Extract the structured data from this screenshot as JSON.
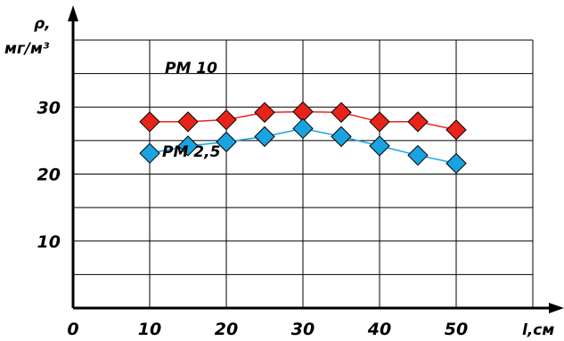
{
  "chart_data": {
    "type": "line",
    "ylabel_line1": "ρ,",
    "ylabel_line2": "мг/м³",
    "xlabel": "l,см",
    "xlim": [
      0,
      60
    ],
    "ylim": [
      0,
      40
    ],
    "grid": true,
    "xticks": [
      "0",
      "10",
      "20",
      "30",
      "40",
      "50"
    ],
    "yticks": [
      "10",
      "20",
      "30"
    ],
    "series": [
      {
        "name": "PM 10",
        "color": "#e8231a",
        "x": [
          10,
          15,
          20,
          25,
          30,
          35,
          40,
          45,
          50
        ],
        "y": [
          27.8,
          27.8,
          28.1,
          29.2,
          29.3,
          29.2,
          27.8,
          27.8,
          26.6
        ]
      },
      {
        "name": "PM 2,5",
        "color": "#1aa3e0",
        "x": [
          10,
          15,
          20,
          25,
          30,
          35,
          40,
          45,
          50
        ],
        "y": [
          23.1,
          24.2,
          24.8,
          25.6,
          26.8,
          25.6,
          24.2,
          22.8,
          21.6
        ]
      }
    ]
  }
}
